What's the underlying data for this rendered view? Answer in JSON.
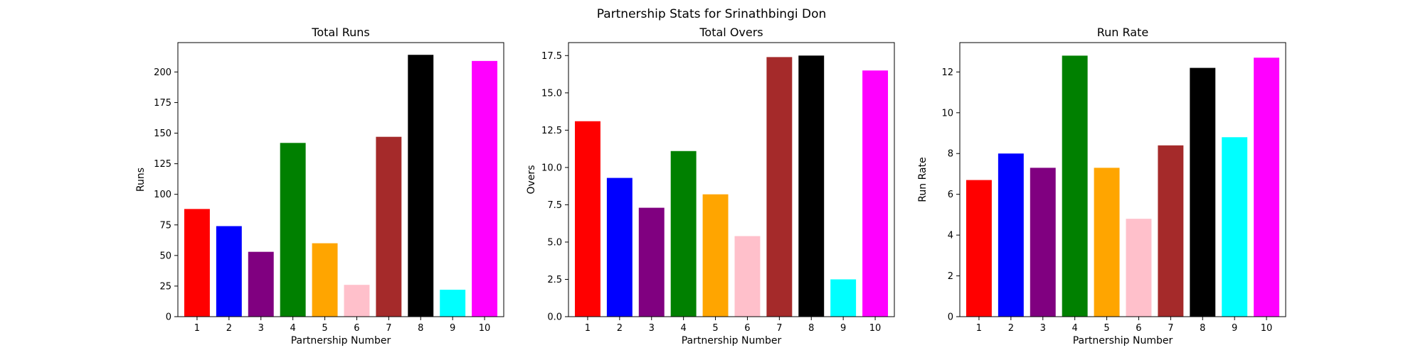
{
  "suptitle": "Partnership Stats for Srinathbingi Don",
  "chart_data": [
    {
      "type": "bar",
      "title": "Total Runs",
      "xlabel": "Partnership Number",
      "ylabel": "Runs",
      "categories": [
        "1",
        "2",
        "3",
        "4",
        "5",
        "6",
        "7",
        "8",
        "9",
        "10"
      ],
      "values": [
        88,
        74,
        53,
        142,
        60,
        26,
        147,
        214,
        22,
        209
      ],
      "ylim": [
        0,
        224
      ],
      "yticks": [
        0,
        25,
        50,
        75,
        100,
        125,
        150,
        175,
        200
      ],
      "ytick_labels": [
        "0",
        "25",
        "50",
        "75",
        "100",
        "125",
        "150",
        "175",
        "200"
      ],
      "grid": false
    },
    {
      "type": "bar",
      "title": "Total Overs",
      "xlabel": "Partnership Number",
      "ylabel": "Overs",
      "categories": [
        "1",
        "2",
        "3",
        "4",
        "5",
        "6",
        "7",
        "8",
        "9",
        "10"
      ],
      "values": [
        13.1,
        9.3,
        7.3,
        11.1,
        8.2,
        5.4,
        17.4,
        17.5,
        2.5,
        16.5
      ],
      "ylim": [
        0,
        18.37
      ],
      "yticks": [
        0,
        2.5,
        5,
        7.5,
        10,
        12.5,
        15,
        17.5
      ],
      "ytick_labels": [
        "0.0",
        "2.5",
        "5.0",
        "7.5",
        "10.0",
        "12.5",
        "15.0",
        "17.5"
      ],
      "grid": false
    },
    {
      "type": "bar",
      "title": "Run Rate",
      "xlabel": "Partnership Number",
      "ylabel": "Run Rate",
      "categories": [
        "1",
        "2",
        "3",
        "4",
        "5",
        "6",
        "7",
        "8",
        "9",
        "10"
      ],
      "values": [
        6.7,
        8.0,
        7.3,
        12.8,
        7.3,
        4.8,
        8.4,
        12.2,
        8.8,
        12.7
      ],
      "ylim": [
        0,
        13.44
      ],
      "yticks": [
        0,
        2,
        4,
        6,
        8,
        10,
        12
      ],
      "ytick_labels": [
        "0",
        "2",
        "4",
        "6",
        "8",
        "10",
        "12"
      ],
      "grid": false
    }
  ],
  "bar_colors": [
    "#ff0000",
    "#0000ff",
    "#800080",
    "#008000",
    "#ffa500",
    "#ffc0cb",
    "#a52a2a",
    "#000000",
    "#00ffff",
    "#ff00ff"
  ]
}
